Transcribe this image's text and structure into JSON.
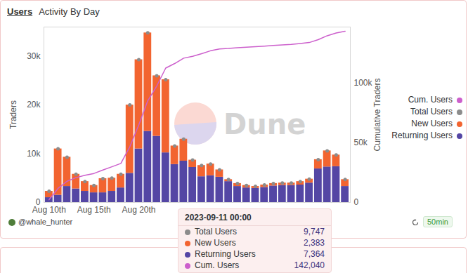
{
  "tabs": [
    "Users",
    "Activity By Day"
  ],
  "watermark": "Dune",
  "footer": {
    "author": "@whale_hunter",
    "refresh": "50min"
  },
  "tooltip": {
    "title": "2023-09-11 00:00",
    "rows": [
      {
        "name": "Total Users",
        "value": "9,747"
      },
      {
        "name": "New Users",
        "value": "2,383"
      },
      {
        "name": "Returning Users",
        "value": "7,364"
      },
      {
        "name": "Cum. Users",
        "value": "142,040"
      }
    ]
  },
  "chart_data": {
    "type": "bar",
    "stacked": true,
    "grid": false,
    "legend": "right",
    "ylabel": "Traders",
    "y2label": "Cumulative Traders",
    "categories": [
      "Aug 10th",
      null,
      null,
      null,
      null,
      "Aug 15th",
      null,
      null,
      null,
      null,
      "Aug 20th",
      null,
      null,
      null,
      null,
      null,
      null,
      null,
      null,
      null,
      null,
      null,
      null,
      null,
      null,
      null,
      null,
      null,
      null,
      null,
      null,
      null,
      null,
      null
    ],
    "ylim": [
      0,
      36000
    ],
    "yticks": [
      0,
      {
        "value": 10000,
        "label": "10k"
      },
      {
        "value": 20000,
        "label": "20k"
      },
      {
        "value": 30000,
        "label": "30k"
      }
    ],
    "y2lim": [
      0,
      147000
    ],
    "y2ticks": [
      0,
      {
        "value": 50000,
        "label": "50k"
      },
      {
        "value": 100000,
        "label": "100k"
      }
    ],
    "series": [
      {
        "name": "Cum. Users",
        "type": "line",
        "axis": "y2",
        "color": "#cc5fcc",
        "line_style": "solid",
        "values": [
          2300,
          11800,
          17800,
          20800,
          22800,
          24300,
          27200,
          29900,
          32700,
          46700,
          65000,
          85200,
          97600,
          112600,
          116400,
          120900,
          122400,
          124700,
          127100,
          128600,
          129000,
          129600,
          130100,
          130500,
          131000,
          131500,
          132000,
          132500,
          133200,
          134000,
          136400,
          139700,
          142040,
          143500
        ]
      },
      {
        "name": "Total Users",
        "type": "dot",
        "marker": "circle",
        "color": "#8c8c8c",
        "values": [
          2300,
          11000,
          9300,
          5800,
          4300,
          3500,
          4900,
          5000,
          5800,
          20000,
          29300,
          34800,
          26000,
          25200,
          11600,
          13000,
          8700,
          7600,
          7900,
          6700,
          4700,
          3900,
          3500,
          3300,
          3600,
          3900,
          4000,
          4000,
          4300,
          4800,
          8800,
          10600,
          9747,
          4700
        ]
      },
      {
        "name": "New Users",
        "type": "bar",
        "color": "#f26430",
        "values": [
          1300,
          9500,
          6000,
          3000,
          2000,
          1500,
          2900,
          2700,
          2800,
          14000,
          18300,
          20200,
          12400,
          15000,
          3800,
          4500,
          1500,
          2300,
          2400,
          1500,
          400,
          600,
          500,
          400,
          500,
          500,
          500,
          500,
          700,
          800,
          1900,
          3300,
          2383,
          1400
        ]
      },
      {
        "name": "Returning Users",
        "type": "bar",
        "color": "#5446a4",
        "values": [
          1000,
          1500,
          3300,
          2800,
          2300,
          2000,
          2000,
          2300,
          3000,
          6000,
          11000,
          14600,
          13600,
          10200,
          7800,
          8500,
          7200,
          5300,
          5500,
          5200,
          4300,
          3300,
          3000,
          2900,
          3100,
          3400,
          3500,
          3500,
          3600,
          4000,
          6900,
          7300,
          7364,
          3300
        ]
      }
    ]
  }
}
